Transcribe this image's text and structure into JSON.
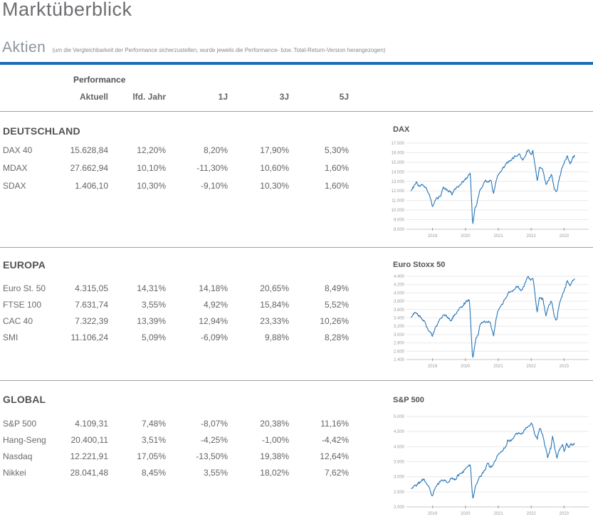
{
  "page": {
    "title": "Marktüberblick"
  },
  "aktien": {
    "title": "Aktien",
    "note": "(um die Vergleichbarkeit der Performance sicherzustellen, wurde jeweils die Performance- bzw. Total-Return-Version herangezogen)"
  },
  "table": {
    "group_header": "Performance",
    "columns": [
      "Aktuell",
      "lfd. Jahr",
      "1J",
      "3J",
      "5J"
    ],
    "groups": [
      {
        "name": "DEUTSCHLAND",
        "rows": [
          {
            "label": "DAX 40",
            "values": [
              "15.628,84",
              "12,20%",
              "8,20%",
              "17,90%",
              "5,30%"
            ]
          },
          {
            "label": "MDAX",
            "values": [
              "27.662,94",
              "10,10%",
              "-11,30%",
              "10,60%",
              "1,60%"
            ]
          },
          {
            "label": "SDAX",
            "values": [
              "1.406,10",
              "10,30%",
              "-9,10%",
              "10,30%",
              "1,60%"
            ]
          }
        ]
      },
      {
        "name": "EUROPA",
        "rows": [
          {
            "label": "Euro St. 50",
            "values": [
              "4.315,05",
              "14,31%",
              "14,18%",
              "20,65%",
              "8,49%"
            ]
          },
          {
            "label": "FTSE 100",
            "values": [
              "7.631,74",
              "3,55%",
              "4,92%",
              "15,84%",
              "5,52%"
            ]
          },
          {
            "label": "CAC 40",
            "values": [
              "7.322,39",
              "13,39%",
              "12,94%",
              "23,33%",
              "10,26%"
            ]
          },
          {
            "label": "SMI",
            "values": [
              "11.106,24",
              "5,09%",
              "-6,09%",
              "9,88%",
              "8,28%"
            ]
          }
        ]
      },
      {
        "name": "GLOBAL",
        "rows": [
          {
            "label": "S&P 500",
            "values": [
              "4.109,31",
              "7,48%",
              "-8,07%",
              "20,38%",
              "11,16%"
            ]
          },
          {
            "label": "Hang-Seng",
            "values": [
              "20.400,11",
              "3,51%",
              "-4,25%",
              "-1,00%",
              "-4,42%"
            ]
          },
          {
            "label": "Nasdaq",
            "values": [
              "12.221,91",
              "17,05%",
              "-13,50%",
              "19,38%",
              "12,64%"
            ]
          },
          {
            "label": "Nikkei",
            "values": [
              "28.041,48",
              "8,45%",
              "3,55%",
              "18,02%",
              "7,62%"
            ]
          }
        ]
      }
    ]
  },
  "chart_data": [
    {
      "type": "line",
      "title": "DAX",
      "xlim": [
        2018.25,
        2023.75
      ],
      "x_ticks": [
        2019,
        2020,
        2021,
        2022,
        2023
      ],
      "ylim": [
        8000,
        17000
      ],
      "y_step": 1000,
      "grid": true,
      "legend": "none",
      "series": [
        {
          "name": "DAX",
          "keypoints": [
            [
              2018.35,
              12050
            ],
            [
              2018.45,
              12600
            ],
            [
              2018.5,
              13000
            ],
            [
              2018.6,
              12500
            ],
            [
              2018.7,
              12700
            ],
            [
              2018.8,
              12350
            ],
            [
              2018.9,
              11600
            ],
            [
              2019.0,
              10500
            ],
            [
              2019.1,
              11100
            ],
            [
              2019.25,
              11600
            ],
            [
              2019.33,
              12400
            ],
            [
              2019.45,
              12100
            ],
            [
              2019.6,
              11700
            ],
            [
              2019.75,
              12400
            ],
            [
              2019.85,
              12650
            ],
            [
              2020.0,
              13250
            ],
            [
              2020.1,
              13700
            ],
            [
              2020.15,
              13780
            ],
            [
              2020.22,
              8450
            ],
            [
              2020.3,
              10300
            ],
            [
              2020.35,
              10700
            ],
            [
              2020.45,
              12300
            ],
            [
              2020.5,
              12350
            ],
            [
              2020.6,
              13000
            ],
            [
              2020.7,
              12900
            ],
            [
              2020.78,
              13200
            ],
            [
              2020.85,
              11600
            ],
            [
              2020.95,
              13300
            ],
            [
              2021.0,
              13750
            ],
            [
              2021.1,
              14000
            ],
            [
              2021.2,
              14600
            ],
            [
              2021.35,
              15200
            ],
            [
              2021.45,
              15500
            ],
            [
              2021.55,
              15650
            ],
            [
              2021.65,
              15900
            ],
            [
              2021.75,
              15250
            ],
            [
              2021.85,
              15800
            ],
            [
              2021.9,
              16250
            ],
            [
              2022.0,
              15900
            ],
            [
              2022.05,
              16300
            ],
            [
              2022.1,
              15100
            ],
            [
              2022.18,
              12950
            ],
            [
              2022.25,
              14400
            ],
            [
              2022.35,
              14250
            ],
            [
              2022.45,
              12650
            ],
            [
              2022.55,
              13300
            ],
            [
              2022.62,
              13700
            ],
            [
              2022.7,
              12350
            ],
            [
              2022.78,
              11950
            ],
            [
              2022.85,
              13250
            ],
            [
              2022.95,
              14450
            ],
            [
              2023.05,
              15250
            ],
            [
              2023.1,
              15500
            ],
            [
              2023.18,
              14850
            ],
            [
              2023.25,
              15450
            ],
            [
              2023.33,
              15630
            ]
          ]
        }
      ]
    },
    {
      "type": "line",
      "title": "Euro Stoxx 50",
      "xlim": [
        2018.25,
        2023.75
      ],
      "x_ticks": [
        2019,
        2020,
        2021,
        2022,
        2023
      ],
      "ylim": [
        2400,
        4400
      ],
      "y_step": 200,
      "grid": true,
      "legend": "none",
      "series": [
        {
          "name": "Euro Stoxx 50",
          "keypoints": [
            [
              2018.35,
              3420
            ],
            [
              2018.45,
              3520
            ],
            [
              2018.55,
              3480
            ],
            [
              2018.65,
              3420
            ],
            [
              2018.75,
              3300
            ],
            [
              2018.85,
              3150
            ],
            [
              2019.0,
              2950
            ],
            [
              2019.1,
              3200
            ],
            [
              2019.25,
              3400
            ],
            [
              2019.35,
              3500
            ],
            [
              2019.45,
              3420
            ],
            [
              2019.55,
              3320
            ],
            [
              2019.65,
              3450
            ],
            [
              2019.75,
              3550
            ],
            [
              2019.9,
              3700
            ],
            [
              2020.0,
              3780
            ],
            [
              2020.12,
              3860
            ],
            [
              2020.22,
              2400
            ],
            [
              2020.3,
              2850
            ],
            [
              2020.4,
              3050
            ],
            [
              2020.45,
              3250
            ],
            [
              2020.55,
              3320
            ],
            [
              2020.65,
              3300
            ],
            [
              2020.75,
              3330
            ],
            [
              2020.85,
              2950
            ],
            [
              2020.95,
              3450
            ],
            [
              2021.0,
              3600
            ],
            [
              2021.1,
              3700
            ],
            [
              2021.2,
              3850
            ],
            [
              2021.3,
              4000
            ],
            [
              2021.4,
              4050
            ],
            [
              2021.5,
              4100
            ],
            [
              2021.6,
              4150
            ],
            [
              2021.7,
              4050
            ],
            [
              2021.8,
              4200
            ],
            [
              2021.9,
              4400
            ],
            [
              2022.0,
              4300
            ],
            [
              2022.05,
              4380
            ],
            [
              2022.1,
              4100
            ],
            [
              2022.18,
              3500
            ],
            [
              2022.25,
              3900
            ],
            [
              2022.35,
              3850
            ],
            [
              2022.45,
              3450
            ],
            [
              2022.55,
              3700
            ],
            [
              2022.62,
              3800
            ],
            [
              2022.7,
              3450
            ],
            [
              2022.78,
              3350
            ],
            [
              2022.85,
              3700
            ],
            [
              2022.95,
              3950
            ],
            [
              2023.05,
              4150
            ],
            [
              2023.1,
              4300
            ],
            [
              2023.18,
              4150
            ],
            [
              2023.25,
              4280
            ],
            [
              2023.33,
              4315
            ]
          ]
        }
      ]
    },
    {
      "type": "line",
      "title": "S&P 500",
      "xlim": [
        2018.25,
        2023.75
      ],
      "x_ticks": [
        2019,
        2020,
        2021,
        2022,
        2023
      ],
      "ylim": [
        2000,
        5000
      ],
      "y_step": 500,
      "grid": true,
      "legend": "none",
      "series": [
        {
          "name": "S&P 500",
          "keypoints": [
            [
              2018.35,
              2620
            ],
            [
              2018.45,
              2720
            ],
            [
              2018.55,
              2780
            ],
            [
              2018.65,
              2850
            ],
            [
              2018.72,
              2920
            ],
            [
              2018.8,
              2750
            ],
            [
              2018.9,
              2650
            ],
            [
              2019.0,
              2350
            ],
            [
              2019.1,
              2700
            ],
            [
              2019.25,
              2850
            ],
            [
              2019.35,
              2920
            ],
            [
              2019.45,
              2750
            ],
            [
              2019.55,
              2950
            ],
            [
              2019.65,
              2880
            ],
            [
              2019.75,
              3000
            ],
            [
              2019.9,
              3150
            ],
            [
              2020.0,
              3250
            ],
            [
              2020.1,
              3380
            ],
            [
              2020.15,
              3390
            ],
            [
              2020.22,
              2230
            ],
            [
              2020.3,
              2650
            ],
            [
              2020.4,
              2900
            ],
            [
              2020.5,
              3100
            ],
            [
              2020.6,
              3230
            ],
            [
              2020.68,
              3500
            ],
            [
              2020.75,
              3300
            ],
            [
              2020.85,
              3400
            ],
            [
              2020.95,
              3650
            ],
            [
              2021.0,
              3750
            ],
            [
              2021.1,
              3850
            ],
            [
              2021.2,
              3950
            ],
            [
              2021.3,
              4200
            ],
            [
              2021.4,
              4200
            ],
            [
              2021.5,
              4350
            ],
            [
              2021.6,
              4450
            ],
            [
              2021.7,
              4400
            ],
            [
              2021.8,
              4550
            ],
            [
              2021.9,
              4700
            ],
            [
              2022.0,
              4790
            ],
            [
              2022.05,
              4680
            ],
            [
              2022.1,
              4450
            ],
            [
              2022.18,
              4250
            ],
            [
              2022.25,
              4600
            ],
            [
              2022.35,
              4450
            ],
            [
              2022.45,
              3900
            ],
            [
              2022.5,
              3650
            ],
            [
              2022.6,
              3950
            ],
            [
              2022.65,
              4300
            ],
            [
              2022.72,
              3950
            ],
            [
              2022.78,
              3580
            ],
            [
              2022.85,
              3900
            ],
            [
              2022.95,
              4050
            ],
            [
              2023.0,
              3850
            ],
            [
              2023.08,
              4100
            ],
            [
              2023.15,
              3950
            ],
            [
              2023.2,
              4050
            ],
            [
              2023.28,
              4100
            ],
            [
              2023.33,
              4109
            ]
          ]
        }
      ]
    }
  ],
  "colors": {
    "accent_blue": "#1a6bb5",
    "chart_line": "#2575b8",
    "grid_line": "#e9e9e9",
    "axis_line": "#c9c9c9",
    "tick_label": "#9b9b9b"
  }
}
